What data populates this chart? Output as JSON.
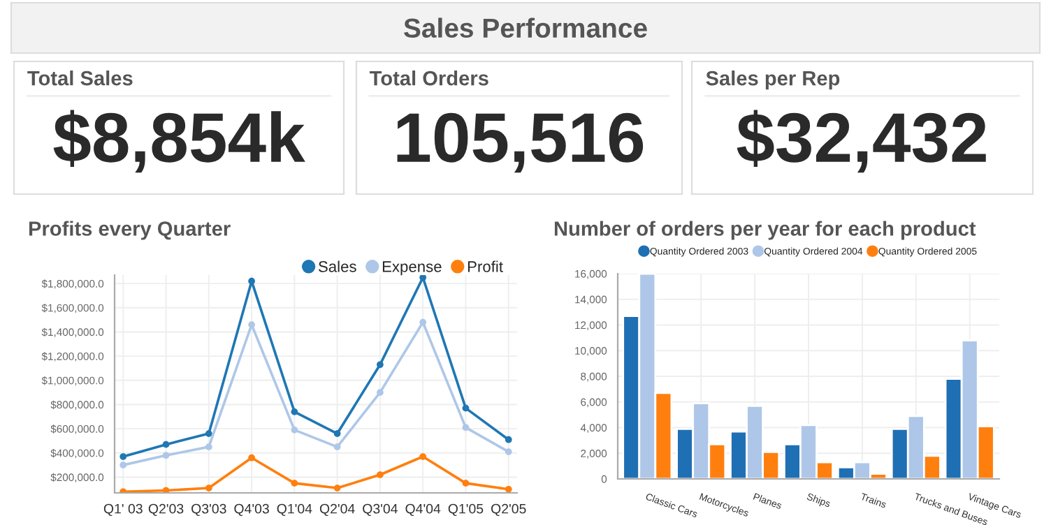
{
  "chart_data": [
    {
      "type": "other",
      "title": "Sales Performance"
    },
    {
      "type": "other",
      "title": "Total Sales",
      "annotations": [
        "$8,854k"
      ]
    },
    {
      "type": "other",
      "title": "Total Orders",
      "annotations": [
        "105,516"
      ]
    },
    {
      "type": "other",
      "title": "Sales per Rep",
      "annotations": [
        "$32,432"
      ]
    },
    {
      "type": "line",
      "title": "Profits every Quarter",
      "categories": [
        "Q1' 03",
        "Q2'03",
        "Q3'03",
        "Q4'03",
        "Q1'04",
        "Q2'04",
        "Q3'04",
        "Q4'04",
        "Q1'05",
        "Q2'05"
      ],
      "series": [
        {
          "name": "Sales",
          "color": "#1f77b4",
          "values": [
            370000,
            470000,
            560000,
            1820000,
            740000,
            560000,
            1130000,
            1850000,
            770000,
            510000
          ]
        },
        {
          "name": "Expense",
          "color": "#aec7e8",
          "values": [
            300000,
            380000,
            450000,
            1460000,
            590000,
            450000,
            900000,
            1480000,
            610000,
            410000
          ]
        },
        {
          "name": "Profit",
          "color": "#ff7f0e",
          "values": [
            80000,
            90000,
            110000,
            360000,
            150000,
            110000,
            220000,
            370000,
            150000,
            100000
          ]
        }
      ],
      "ylim": [
        70000,
        1870000
      ],
      "yticks": [
        {
          "value": 200000,
          "label": "$200,000.0"
        },
        {
          "value": 400000,
          "label": "$400,000.0"
        },
        {
          "value": 600000,
          "label": "$600,000.0"
        },
        {
          "value": 800000,
          "label": "$800,000.0"
        },
        {
          "value": 1000000,
          "label": "$1,000,000.0"
        },
        {
          "value": 1200000,
          "label": "$1,200,000.0"
        },
        {
          "value": 1400000,
          "label": "$1,400,000.0"
        },
        {
          "value": 1600000,
          "label": "$1,600,000.0"
        },
        {
          "value": 1800000,
          "label": "$1,800,000.0"
        }
      ],
      "grid": true,
      "legend": "top right",
      "marker": "circle",
      "line_style": "solid"
    },
    {
      "type": "bar",
      "title": "Number of orders per year for each product",
      "categories": [
        "Classic Cars",
        "Motorcycles",
        "Planes",
        "Ships",
        "Trains",
        "Trucks and Buses",
        "Vintage Cars"
      ],
      "series": [
        {
          "name": "Quantity Ordered 2003",
          "color": "#1f6fb4",
          "values": [
            12700,
            3900,
            3700,
            2700,
            900,
            3900,
            7800
          ]
        },
        {
          "name": "Quantity Ordered 2004",
          "color": "#aec7e8",
          "values": [
            16000,
            5900,
            5700,
            4200,
            1300,
            4900,
            10800
          ]
        },
        {
          "name": "Quantity Ordered 2005",
          "color": "#ff7f0e",
          "values": [
            6700,
            2700,
            2100,
            1300,
            400,
            1800,
            4100
          ]
        }
      ],
      "ylim": [
        0,
        16000
      ],
      "yticks": [
        {
          "value": 0,
          "label": "0"
        },
        {
          "value": 2000,
          "label": "2,000"
        },
        {
          "value": 4000,
          "label": "4,000"
        },
        {
          "value": 6000,
          "label": "6,000"
        },
        {
          "value": 8000,
          "label": "8,000"
        },
        {
          "value": 10000,
          "label": "10,000"
        },
        {
          "value": 12000,
          "label": "12,000"
        },
        {
          "value": 14000,
          "label": "14,000"
        },
        {
          "value": 16000,
          "label": "16,000"
        }
      ],
      "grid": true,
      "legend": "top"
    }
  ]
}
